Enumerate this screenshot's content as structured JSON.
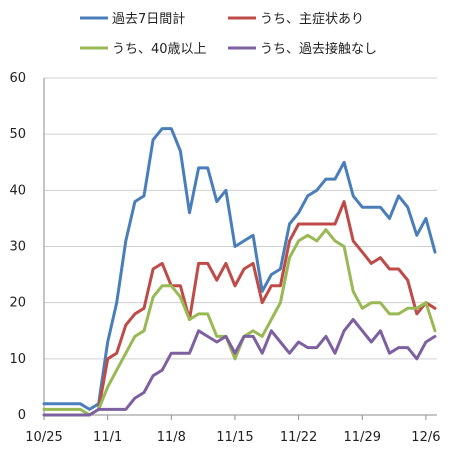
{
  "chart_data": {
    "type": "line",
    "ylim": [
      0,
      60
    ],
    "yticks": [
      0,
      10,
      20,
      30,
      40,
      50,
      60
    ],
    "xticks": [
      {
        "label": "10/25",
        "index": 0
      },
      {
        "label": "11/1",
        "index": 7
      },
      {
        "label": "11/8",
        "index": 14
      },
      {
        "label": "11/15",
        "index": 21
      },
      {
        "label": "11/22",
        "index": 28
      },
      {
        "label": "11/29",
        "index": 35
      },
      {
        "label": "12/6",
        "index": 42
      }
    ],
    "grid": "horizontal",
    "legend_position": "top",
    "x": [
      "10/25",
      "10/26",
      "10/27",
      "10/28",
      "10/29",
      "10/30",
      "10/31",
      "11/1",
      "11/2",
      "11/3",
      "11/4",
      "11/5",
      "11/6",
      "11/7",
      "11/8",
      "11/9",
      "11/10",
      "11/11",
      "11/12",
      "11/13",
      "11/14",
      "11/15",
      "11/16",
      "11/17",
      "11/18",
      "11/19",
      "11/20",
      "11/21",
      "11/22",
      "11/23",
      "11/24",
      "11/25",
      "11/26",
      "11/27",
      "11/28",
      "11/29",
      "11/30",
      "12/1",
      "12/2",
      "12/3",
      "12/4",
      "12/5",
      "12/6",
      "12/7"
    ],
    "series": [
      {
        "name": "過去7日間計",
        "color": "#4a7ebb",
        "values": [
          2,
          2,
          2,
          2,
          2,
          1,
          2,
          13,
          20,
          31,
          38,
          39,
          49,
          51,
          51,
          47,
          36,
          44,
          44,
          38,
          40,
          30,
          31,
          32,
          22,
          25,
          26,
          34,
          36,
          39,
          40,
          42,
          42,
          45,
          39,
          37,
          37,
          37,
          35,
          39,
          37,
          32,
          35,
          29
        ]
      },
      {
        "name": "うち、主症状あり",
        "color": "#be4b48",
        "values": [
          null,
          null,
          null,
          null,
          null,
          null,
          1,
          10,
          11,
          16,
          18,
          19,
          26,
          27,
          23,
          23,
          17,
          27,
          27,
          24,
          27,
          23,
          26,
          27,
          20,
          23,
          23,
          31,
          34,
          34,
          34,
          34,
          34,
          38,
          31,
          29,
          27,
          28,
          26,
          26,
          24,
          18,
          20,
          19
        ]
      },
      {
        "name": "うち、40歳以上",
        "color": "#98b954",
        "values": [
          1,
          1,
          1,
          1,
          1,
          0,
          1,
          5,
          8,
          11,
          14,
          15,
          21,
          23,
          23,
          21,
          17,
          18,
          18,
          14,
          14,
          10,
          14,
          15,
          14,
          17,
          20,
          28,
          31,
          32,
          31,
          33,
          31,
          30,
          22,
          19,
          20,
          20,
          18,
          18,
          19,
          19,
          20,
          15
        ]
      },
      {
        "name": "うち、過去接触なし",
        "color": "#7d60a0",
        "values": [
          0,
          0,
          0,
          0,
          0,
          0,
          1,
          1,
          1,
          1,
          3,
          4,
          7,
          8,
          11,
          11,
          11,
          15,
          14,
          13,
          14,
          11,
          14,
          14,
          11,
          15,
          13,
          11,
          13,
          12,
          12,
          14,
          11,
          15,
          17,
          15,
          13,
          15,
          11,
          12,
          12,
          10,
          13,
          14
        ]
      }
    ]
  }
}
